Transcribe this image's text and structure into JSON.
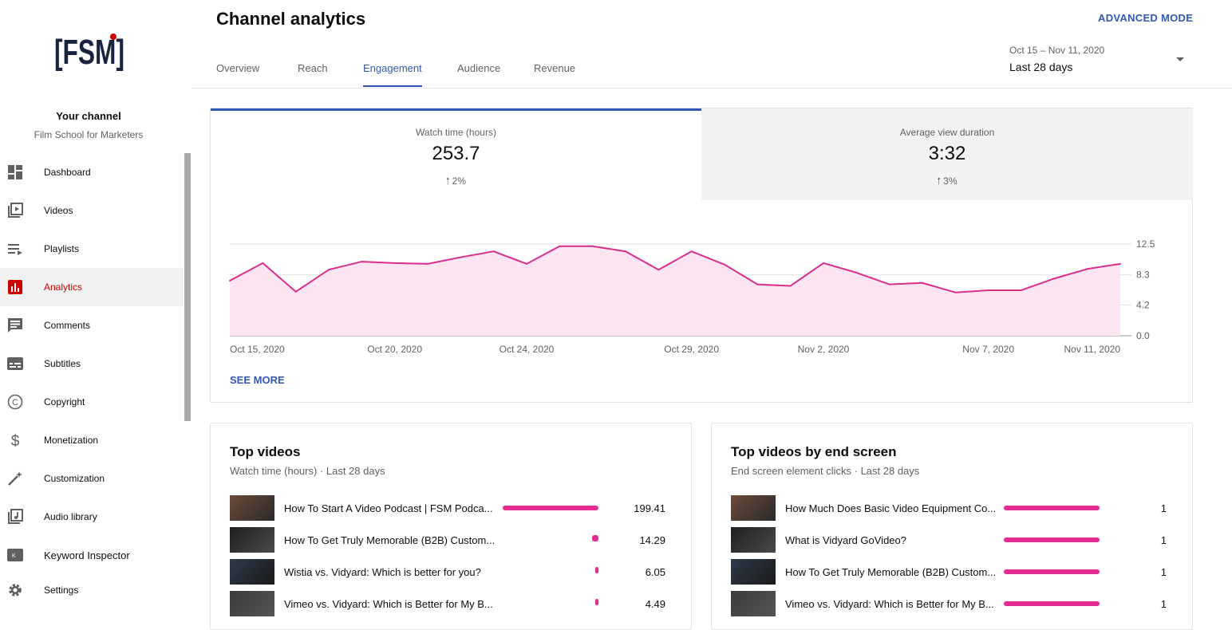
{
  "sidebar": {
    "logo_text": "[FSM]",
    "channel_title": "Your channel",
    "channel_name": "Film School for Marketers",
    "items": [
      {
        "label": "Dashboard",
        "icon": "dashboard-icon"
      },
      {
        "label": "Videos",
        "icon": "videos-icon"
      },
      {
        "label": "Playlists",
        "icon": "playlists-icon"
      },
      {
        "label": "Analytics",
        "icon": "analytics-icon",
        "active": true
      },
      {
        "label": "Comments",
        "icon": "comments-icon"
      },
      {
        "label": "Subtitles",
        "icon": "subtitles-icon"
      },
      {
        "label": "Copyright",
        "icon": "copyright-icon"
      },
      {
        "label": "Monetization",
        "icon": "monetization-icon"
      },
      {
        "label": "Customization",
        "icon": "customization-icon"
      },
      {
        "label": "Audio library",
        "icon": "audio-library-icon"
      },
      {
        "label": "Keyword Inspector",
        "icon": "keyword-inspector-icon"
      },
      {
        "label": "Settings",
        "icon": "gear-icon"
      }
    ]
  },
  "header": {
    "title": "Channel analytics",
    "advanced_mode": "ADVANCED MODE",
    "tabs": [
      "Overview",
      "Reach",
      "Engagement",
      "Audience",
      "Revenue"
    ],
    "active_tab": "Engagement",
    "date_range": "Oct 15 – Nov 11, 2020",
    "date_label": "Last 28 days"
  },
  "metrics": [
    {
      "label": "Watch time (hours)",
      "value": "253.7",
      "change": "2%",
      "selected": true
    },
    {
      "label": "Average view duration",
      "value": "3:32",
      "change": "3%",
      "selected": false
    }
  ],
  "see_more": "SEE MORE",
  "chart_data": {
    "type": "area",
    "x_labels": [
      "Oct 15, 2020",
      "Oct 20, 2020",
      "Oct 24, 2020",
      "Oct 29, 2020",
      "Nov 2, 2020",
      "Nov 7, 2020",
      "Nov 11, 2020"
    ],
    "y_ticks": [
      "12.5",
      "8.3",
      "4.2",
      "0.0"
    ],
    "ylim": [
      0,
      12.5
    ],
    "values": [
      7.5,
      9.9,
      6.0,
      9.0,
      10.1,
      9.9,
      9.8,
      10.7,
      11.5,
      9.8,
      12.2,
      12.2,
      11.5,
      9.0,
      11.5,
      9.7,
      7.0,
      6.8,
      9.9,
      8.6,
      7.0,
      7.2,
      5.9,
      6.2,
      6.2,
      7.8,
      9.1,
      9.8
    ],
    "color": "#d92f8a",
    "fill": "#fce4f1"
  },
  "top_videos": {
    "title": "Top videos",
    "subtitle": "Watch time (hours) · Last 28 days",
    "rows": [
      {
        "title": "How To Start A Video Podcast | FSM Podca...",
        "value": "199.41",
        "fraction": 1.0
      },
      {
        "title": "How To Get Truly Memorable (B2B) Custom...",
        "value": "14.29",
        "fraction": 0.07
      },
      {
        "title": "Wistia vs. Vidyard: Which is better for you?",
        "value": "6.05",
        "fraction": 0.03
      },
      {
        "title": "Vimeo vs. Vidyard: Which is Better for My B...",
        "value": "4.49",
        "fraction": 0.022
      }
    ]
  },
  "top_end_screen": {
    "title": "Top videos by end screen",
    "subtitle": "End screen element clicks · Last 28 days",
    "rows": [
      {
        "title": "How Much Does Basic Video Equipment Co...",
        "value": "1",
        "fraction": 1.0
      },
      {
        "title": "What is Vidyard GoVideo?",
        "value": "1",
        "fraction": 1.0
      },
      {
        "title": "How To Get Truly Memorable (B2B) Custom...",
        "value": "1",
        "fraction": 1.0
      },
      {
        "title": "Vimeo vs. Vidyard: Which is Better for My B...",
        "value": "1",
        "fraction": 1.0
      }
    ]
  },
  "colors": {
    "accent": "#3058b8",
    "active_nav": "#cc0000",
    "bar": "#e52d91"
  }
}
